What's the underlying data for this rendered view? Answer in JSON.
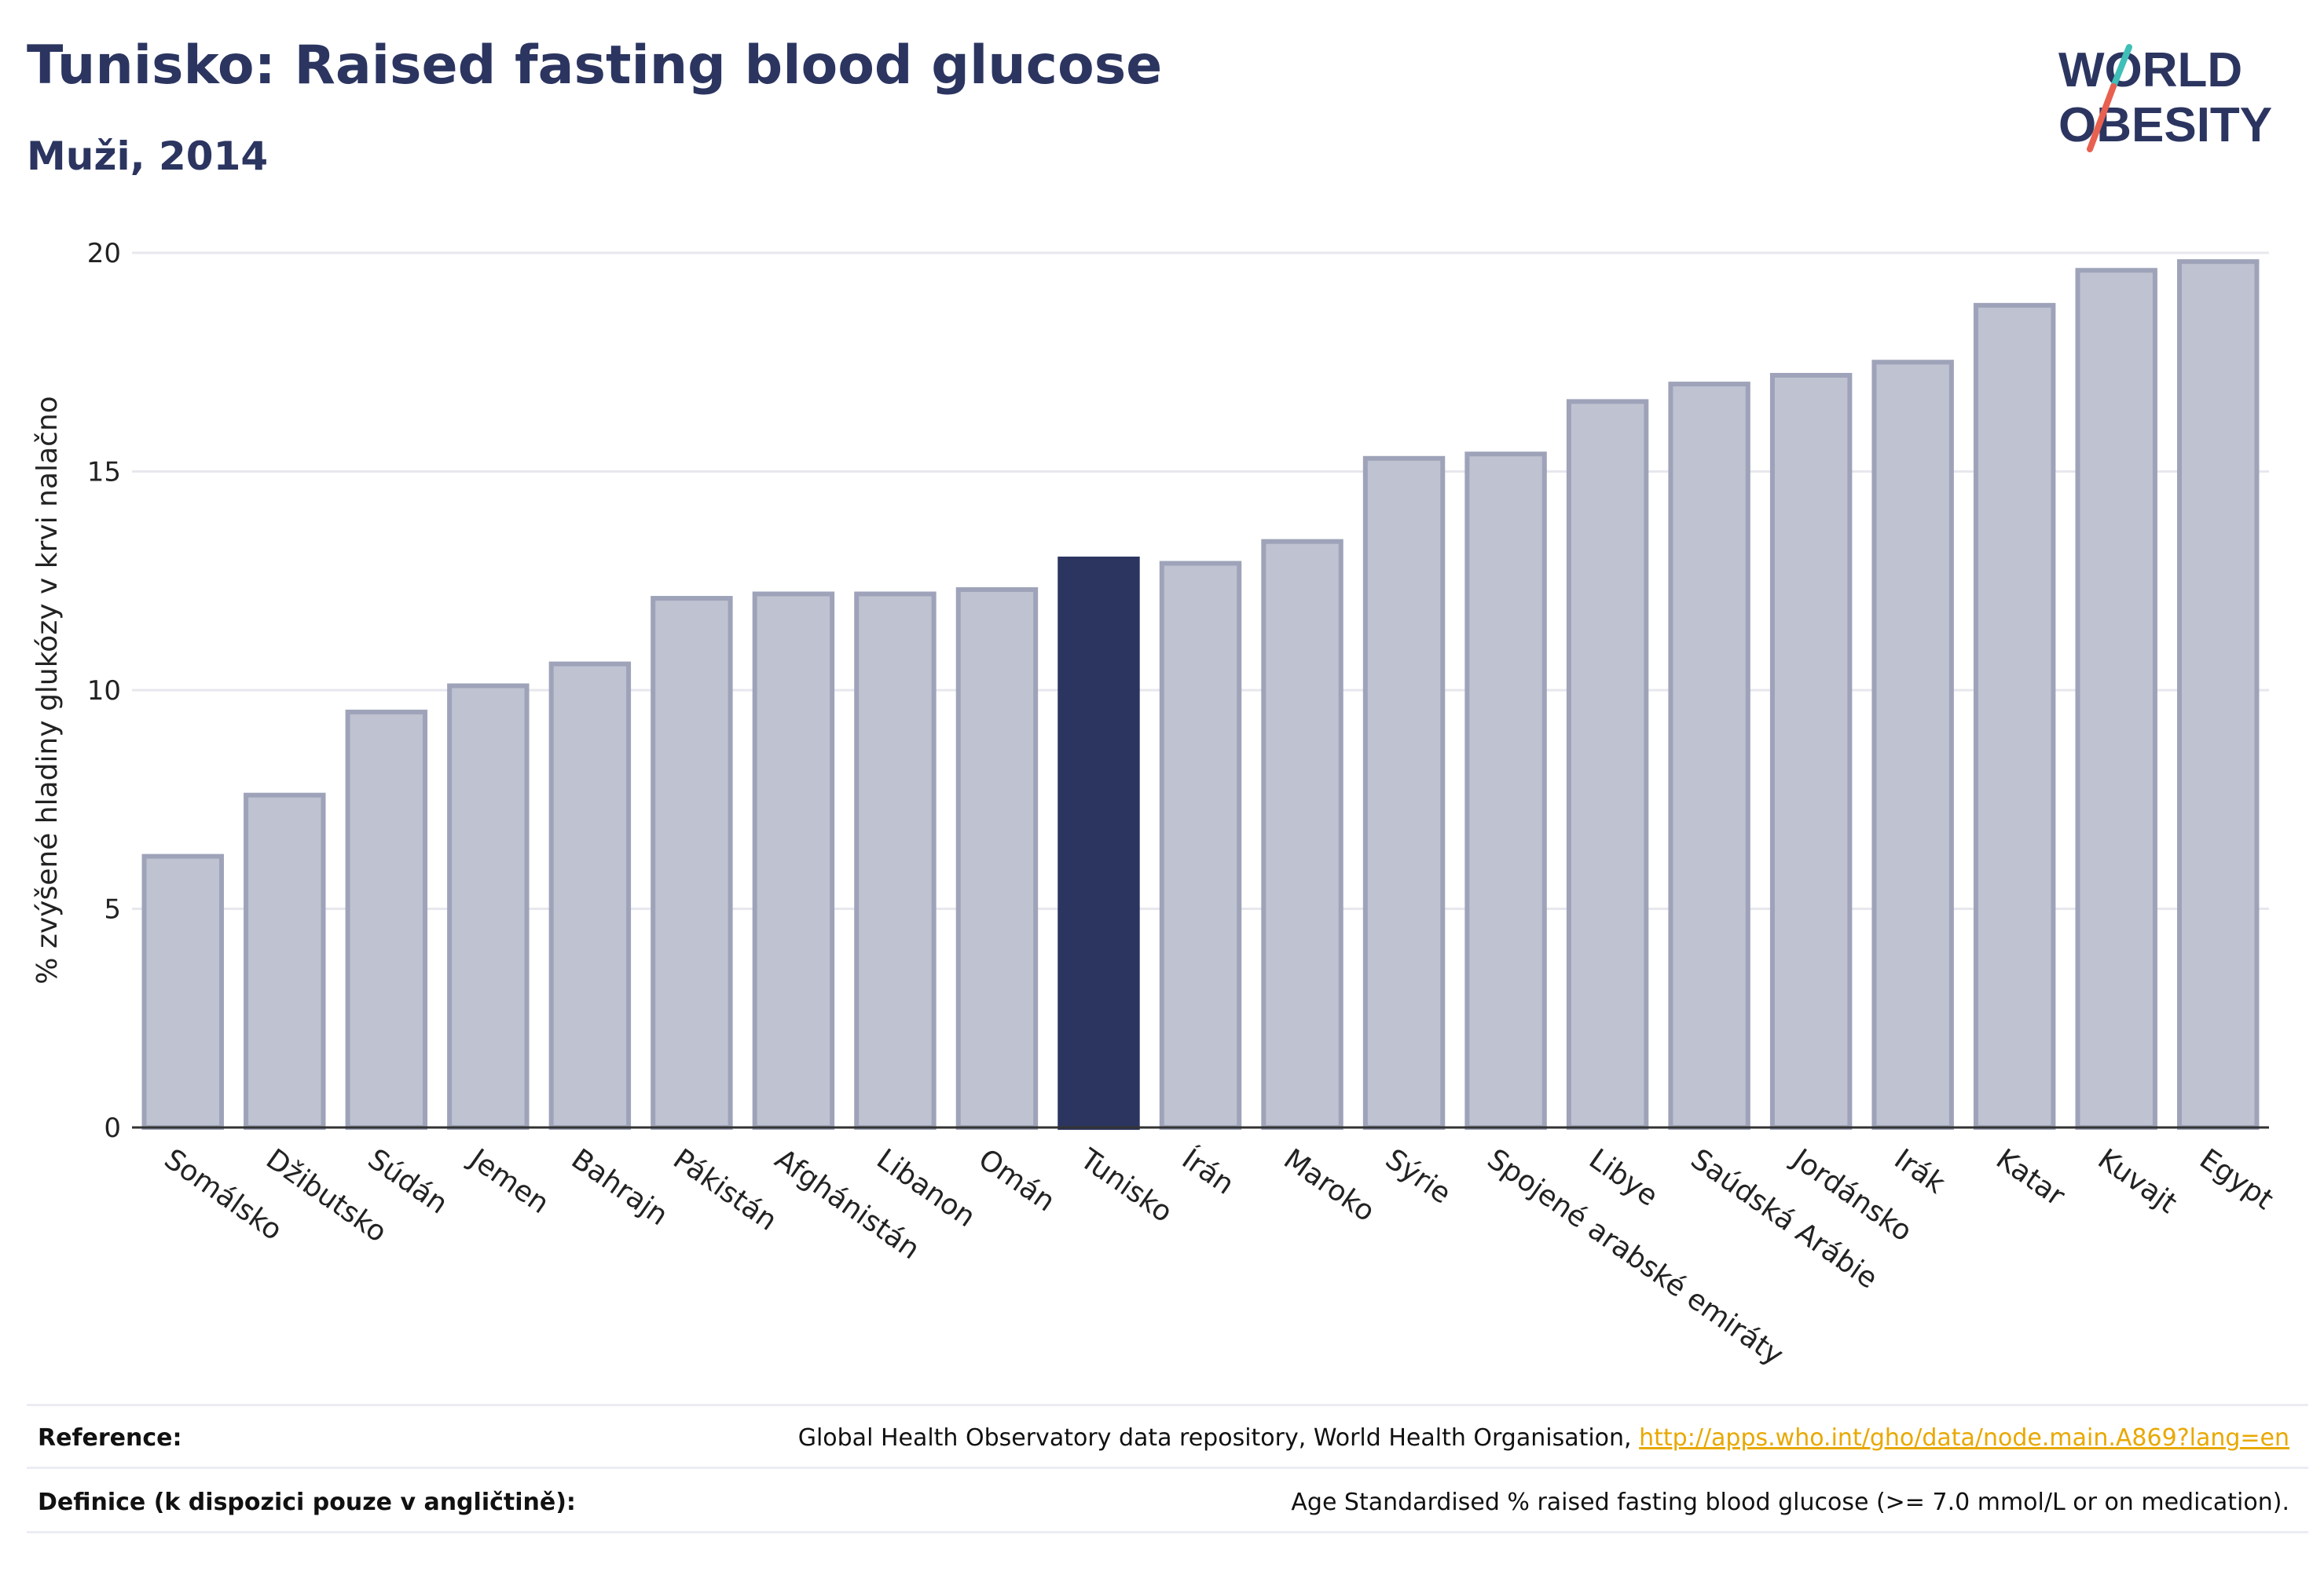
{
  "header": {
    "title": "Tunisko: Raised fasting blood glucose",
    "subtitle": "Muži, 2014"
  },
  "logo": {
    "line1": "WORLD",
    "line2": "OBESITY"
  },
  "colors": {
    "highlight": "#2b3560",
    "bar_fill": "#bfc2d0",
    "bar_stroke": "#9ea3b9",
    "grid": "#e7e7ee",
    "logo_text": "#2b3560",
    "logo_accent_teal": "#3fbfb7",
    "logo_accent_red": "#e8604f"
  },
  "chart_data": {
    "type": "bar",
    "ylabel": "% zvýšené hladiny glukózy v krvi nalačno",
    "xlabel": "",
    "ylim": [
      0,
      20
    ],
    "yticks": [
      0,
      5,
      10,
      15,
      20
    ],
    "grid": true,
    "highlight_category": "Tunisko",
    "categories": [
      "Somálsko",
      "Džibutsko",
      "Súdán",
      "Jemen",
      "Bahrajn",
      "Pákistán",
      "Afghánistán",
      "Libanon",
      "Omán",
      "Tunisko",
      "Írán",
      "Maroko",
      "Sýrie",
      "Spojené arabské emiráty",
      "Libye",
      "Saúdská Arábie",
      "Jordánsko",
      "Irák",
      "Katar",
      "Kuvajt",
      "Egypt"
    ],
    "values": [
      6.2,
      7.6,
      9.5,
      10.1,
      10.6,
      12.1,
      12.2,
      12.2,
      12.3,
      13.0,
      12.9,
      13.4,
      15.3,
      15.4,
      16.6,
      17.0,
      17.2,
      17.5,
      18.8,
      19.6,
      19.8
    ]
  },
  "footer": {
    "reference_label": "Reference:",
    "reference_text": "Global Health Observatory data repository, World Health Organisation,",
    "reference_link": "http://apps.who.int/gho/data/node.main.A869?lang=en",
    "definition_label": "Definice (k dispozici pouze v angličtině):",
    "definition_text": "Age Standardised % raised fasting blood glucose (>= 7.0 mmol/L or on medication)."
  }
}
